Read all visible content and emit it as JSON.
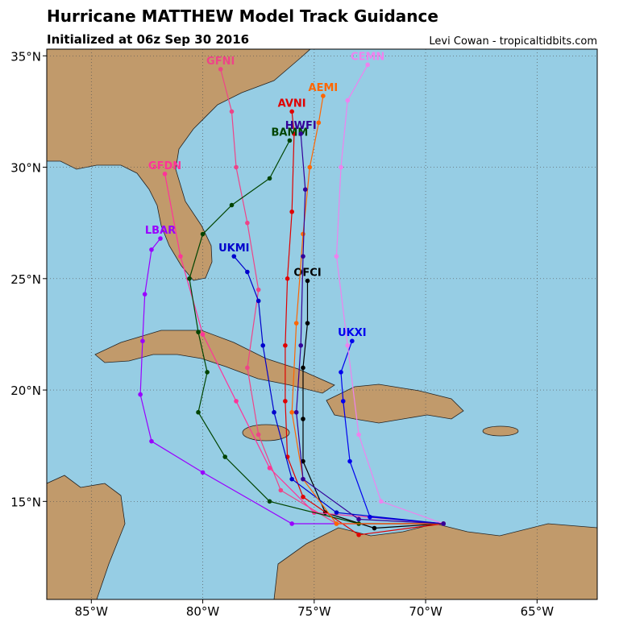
{
  "map": {
    "type": "track",
    "title": "Hurricane MATTHEW Model Track Guidance",
    "subtitle": "Initialized at 06z Sep 30 2016",
    "credit": "Levi Cowan - tropicaltidbits.com",
    "xlim": [
      -87,
      -62.3
    ],
    "ylim": [
      10.6,
      35.3
    ],
    "xticks": [
      {
        "value": -85,
        "label": "85°W"
      },
      {
        "value": -80,
        "label": "80°W"
      },
      {
        "value": -75,
        "label": "75°W"
      },
      {
        "value": -70,
        "label": "70°W"
      },
      {
        "value": -65,
        "label": "65°W"
      }
    ],
    "yticks": [
      {
        "value": 15,
        "label": "15°N"
      },
      {
        "value": 20,
        "label": "20°N"
      },
      {
        "value": 25,
        "label": "25°N"
      },
      {
        "value": 30,
        "label": "30°N"
      },
      {
        "value": 35,
        "label": "35°N"
      }
    ],
    "grid": true,
    "tracks": [
      {
        "name": "OFCI",
        "color": "#000000",
        "lon": [
          -69.2,
          -72.3,
          -74.5,
          -75.5,
          -75.5,
          -75.5,
          -75.3,
          -75.3
        ],
        "lat": [
          14.0,
          13.8,
          14.5,
          16.8,
          18.7,
          21.0,
          23.0,
          24.9
        ]
      },
      {
        "name": "AVNI",
        "color": "#e00000",
        "lon": [
          -69.2,
          -73.0,
          -75.5,
          -76.2,
          -76.3,
          -76.3,
          -76.2,
          -76.0,
          -75.9,
          -76.0
        ],
        "lat": [
          14.0,
          13.5,
          15.2,
          17.0,
          19.5,
          22.0,
          25.0,
          28.0,
          31.5,
          32.5
        ]
      },
      {
        "name": "GFNI",
        "color": "#ee4488",
        "lon": [
          -69.2,
          -74.0,
          -76.5,
          -77.5,
          -78.0,
          -77.5,
          -78.0,
          -78.5,
          -78.7,
          -79.2
        ],
        "lat": [
          14.0,
          14.0,
          15.5,
          18.0,
          21.0,
          24.5,
          27.5,
          30.0,
          32.5,
          34.4
        ]
      },
      {
        "name": "GFDN",
        "color": "#ff3399",
        "lon": [
          -69.2,
          -75.0,
          -77.0,
          -78.5,
          -80.0,
          -81.0,
          -81.7
        ],
        "lat": [
          14.0,
          14.5,
          16.5,
          19.5,
          22.5,
          26.0,
          29.7
        ]
      },
      {
        "name": "LBAR",
        "color": "#9900ff",
        "lon": [
          -69.2,
          -76.0,
          -80.0,
          -82.3,
          -82.8,
          -82.7,
          -82.6,
          -82.3,
          -81.9
        ],
        "lat": [
          14.0,
          14.0,
          16.3,
          17.7,
          19.8,
          22.2,
          24.3,
          26.3,
          26.8
        ]
      },
      {
        "name": "UKXI",
        "color": "#0000ee",
        "lon": [
          -69.2,
          -72.5,
          -73.4,
          -73.7,
          -73.8,
          -73.3
        ],
        "lat": [
          14.0,
          14.3,
          16.8,
          19.5,
          20.8,
          22.2
        ]
      },
      {
        "name": "UKMI",
        "color": "#0000cc",
        "lon": [
          -69.2,
          -74.0,
          -76.0,
          -76.8,
          -77.3,
          -77.5,
          -78.0,
          -78.6
        ],
        "lat": [
          14.0,
          14.5,
          16.0,
          19.0,
          22.0,
          24.0,
          25.3,
          26.0
        ]
      },
      {
        "name": "BAMM",
        "color": "#004400",
        "lon": [
          -69.2,
          -73.0,
          -77.0,
          -79.0,
          -80.2,
          -79.8,
          -80.2,
          -80.6,
          -80.0,
          -78.7,
          -77.0,
          -76.1
        ],
        "lat": [
          14.0,
          14.0,
          15.0,
          17.0,
          19.0,
          20.8,
          22.6,
          25.0,
          27.0,
          28.3,
          29.5,
          31.2
        ]
      },
      {
        "name": "CEMN",
        "color": "#ee82ee",
        "lon": [
          -69.2,
          -72.0,
          -73.0,
          -73.5,
          -74.0,
          -73.8,
          -73.5,
          -72.6
        ],
        "lat": [
          14.0,
          15.0,
          18.0,
          22.0,
          26.0,
          30.0,
          33.0,
          34.6
        ]
      },
      {
        "name": "AEMI",
        "color": "#ff6600",
        "lon": [
          -69.2,
          -74.0,
          -75.5,
          -76.0,
          -75.8,
          -75.5,
          -75.2,
          -74.8,
          -74.6
        ],
        "lat": [
          14.0,
          14.0,
          16.0,
          19.0,
          23.0,
          27.0,
          30.0,
          32.0,
          33.2
        ]
      },
      {
        "name": "HWFI",
        "color": "#330099",
        "lon": [
          -69.2,
          -73.0,
          -75.5,
          -75.8,
          -75.6,
          -75.5,
          -75.4,
          -75.6
        ],
        "lat": [
          14.0,
          14.2,
          16.0,
          19.0,
          22.0,
          26.0,
          29.0,
          31.5
        ]
      }
    ]
  }
}
